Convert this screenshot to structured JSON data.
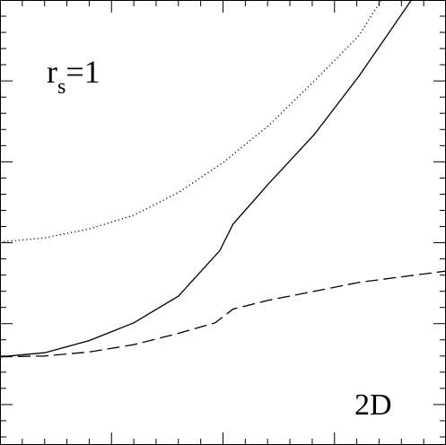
{
  "chart_data": {
    "type": "line",
    "annotations": [
      {
        "text": "r",
        "sub": "s",
        "rest": "=1"
      },
      {
        "text": "2D"
      }
    ],
    "xlim": [
      0,
      4
    ],
    "ylim": [
      -0.5,
      5
    ],
    "xticks": [
      0,
      1,
      2,
      3,
      4
    ],
    "xminor": [
      0.2,
      0.4,
      0.6,
      0.8,
      1.2,
      1.4,
      1.6,
      1.8,
      2.2,
      2.4,
      2.6,
      2.8,
      3.2,
      3.4,
      3.6,
      3.8
    ],
    "yticks": [
      0,
      1,
      2,
      3,
      4
    ],
    "yminor": [
      -0.4,
      -0.2,
      0.2,
      0.4,
      0.6,
      0.8,
      1.2,
      1.4,
      1.6,
      1.8,
      2.2,
      2.4,
      2.6,
      2.8,
      3.2,
      3.4,
      3.6,
      3.8,
      4.2,
      4.4,
      4.6,
      4.8
    ],
    "series": [
      {
        "color": "#000000",
        "dash": "solid",
        "x": [
          0,
          0.4,
          0.8,
          1.2,
          1.6,
          1.97,
          2.09,
          2.41,
          2.82,
          3.22,
          3.69
        ],
        "values": [
          0.59,
          0.64,
          0.79,
          1.01,
          1.34,
          1.9,
          2.23,
          2.73,
          3.34,
          4.06,
          5.0
        ]
      },
      {
        "color": "#000000",
        "dash": "dotted",
        "x": [
          0,
          0.4,
          0.8,
          1.2,
          1.6,
          2.01,
          2.41,
          2.82,
          3.22,
          3.42
        ],
        "values": [
          2.01,
          2.06,
          2.17,
          2.34,
          2.62,
          3.0,
          3.45,
          4.0,
          4.56,
          5.0
        ]
      },
      {
        "color": "#000000",
        "dash": "dashed",
        "x": [
          0,
          0.4,
          0.8,
          1.2,
          1.6,
          1.93,
          2.09,
          2.41,
          2.82,
          3.22,
          4.0
        ],
        "values": [
          0.59,
          0.6,
          0.65,
          0.74,
          0.88,
          1.01,
          1.18,
          1.29,
          1.4,
          1.51,
          1.65
        ]
      }
    ]
  }
}
